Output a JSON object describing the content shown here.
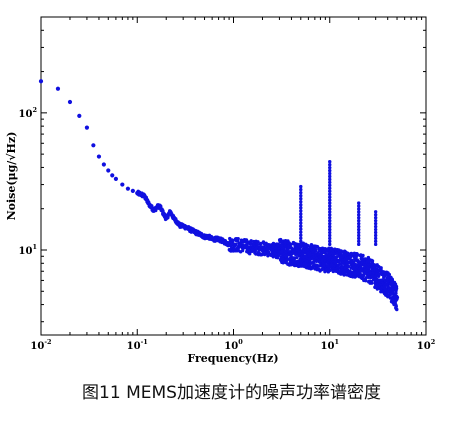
{
  "caption": "图11 MEMS加速度计的噪声功率谱密度",
  "chart_data": {
    "type": "scatter",
    "title": "",
    "xlabel": "Frequency(Hz)",
    "ylabel": "Noise(μg/√Hz)",
    "x_scale": "log",
    "y_scale": "log",
    "xlim": [
      0.01,
      100
    ],
    "ylim": [
      2.4,
      500
    ],
    "x_ticks": [
      {
        "base": "10",
        "exp": "-2",
        "value": 0.01
      },
      {
        "base": "10",
        "exp": "-1",
        "value": 0.1
      },
      {
        "base": "10",
        "exp": "0",
        "value": 1
      },
      {
        "base": "10",
        "exp": "1",
        "value": 10
      },
      {
        "base": "10",
        "exp": "2",
        "value": 100
      }
    ],
    "y_ticks": [
      {
        "base": "10",
        "exp": "1",
        "value": 10
      },
      {
        "base": "10",
        "exp": "2",
        "value": 100
      }
    ],
    "marker_color": "#1010e0",
    "grid": false,
    "legend": "none",
    "series": [
      {
        "x": [
          0.01,
          0.015,
          0.02,
          0.025,
          0.03,
          0.035,
          0.04,
          0.045,
          0.05,
          0.055,
          0.06,
          0.07,
          0.08,
          0.09,
          0.1,
          0.11,
          0.12,
          0.13,
          0.14,
          0.15,
          0.16,
          0.17,
          0.18,
          0.19,
          0.2,
          0.22,
          0.24,
          0.26,
          0.28,
          0.3,
          0.33,
          0.36,
          0.4,
          0.45,
          0.5,
          0.55,
          0.6,
          0.7,
          0.8,
          0.9,
          1.0,
          1.2,
          1.5,
          2.0,
          2.5,
          3.0,
          4.0,
          5.0,
          6.0,
          7.0,
          8.0,
          10.0,
          12.0,
          15.0,
          20.0,
          25.0,
          30.0,
          35.0,
          40.0,
          45.0,
          50.0
        ],
        "y": [
          170,
          150,
          120,
          95,
          78,
          58,
          48,
          42,
          38,
          35,
          33,
          30,
          28,
          27,
          26,
          25.5,
          24.5,
          22,
          20.5,
          19.5,
          20.5,
          21,
          19.5,
          18,
          17,
          19,
          17,
          16,
          15,
          15,
          14.5,
          14,
          13.5,
          13,
          12.5,
          12.5,
          12,
          12,
          11.5,
          11,
          11,
          10.8,
          10.5,
          10.3,
          10,
          9.8,
          9.5,
          9.3,
          9,
          8.8,
          8.6,
          8.5,
          8.3,
          8,
          7.6,
          7.2,
          6.5,
          6,
          5.6,
          5,
          4.5
        ]
      }
    ],
    "spikes": [
      {
        "x": 5.0,
        "peak": 29
      },
      {
        "x": 10.0,
        "peak": 44
      },
      {
        "x": 20.0,
        "peak": 22
      },
      {
        "x": 30.0,
        "peak": 19
      }
    ]
  }
}
